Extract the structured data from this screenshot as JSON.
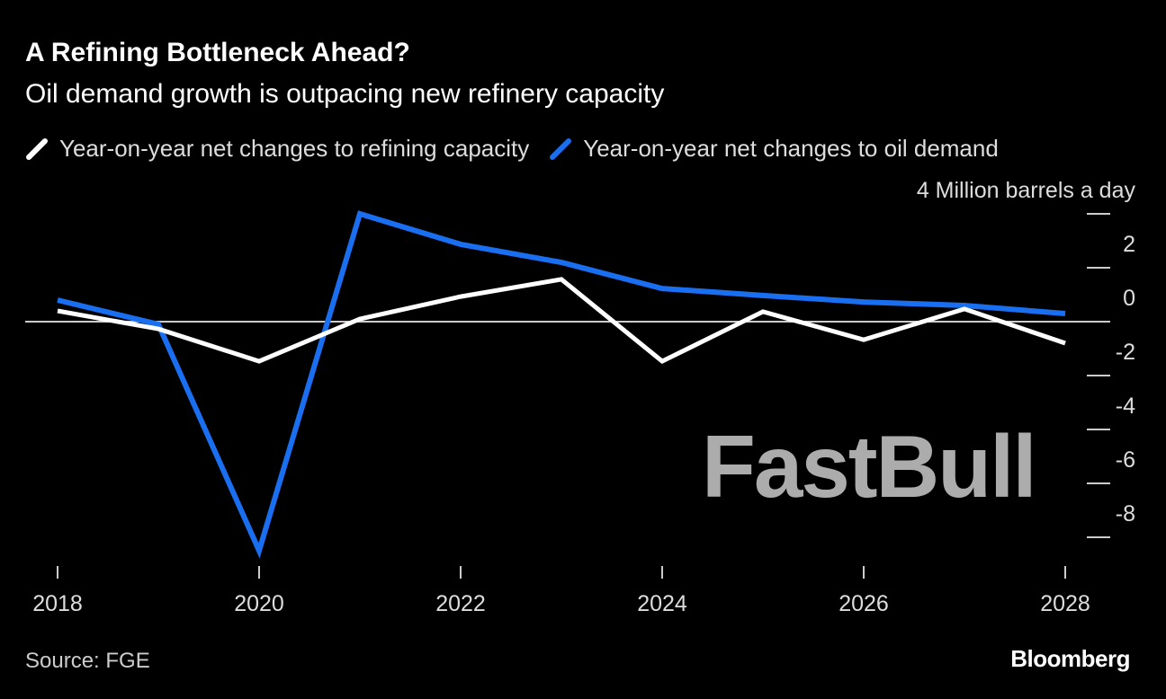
{
  "chart_data": {
    "type": "line",
    "title": "A Refining Bottleneck Ahead?",
    "subtitle": "Oil demand growth is outpacing new refinery capacity",
    "ylabel": "Million barrels a day",
    "source": "Source: FGE",
    "x": [
      2018,
      2019,
      2020,
      2021,
      2022,
      2023,
      2024,
      2025,
      2026,
      2027,
      2028
    ],
    "xticks": [
      "2018",
      "2020",
      "2022",
      "2024",
      "2026",
      "2028"
    ],
    "yticks": [
      "4",
      "2",
      "0",
      "-2",
      "-4",
      "-6",
      "-8"
    ],
    "ylim": [
      -9,
      4
    ],
    "legend_placement": "top",
    "grid": false,
    "series": [
      {
        "name": "Year-on-year net changes to refining capacity",
        "color": "#ffffff",
        "values": [
          0.4,
          -0.27,
          -1.47,
          0.1,
          0.93,
          1.57,
          -1.47,
          0.37,
          -0.67,
          0.47,
          -0.8
        ]
      },
      {
        "name": "Year-on-year net changes to oil demand",
        "color": "#1a6ff0",
        "values": [
          0.8,
          -0.1,
          -8.5,
          4.0,
          2.87,
          2.2,
          1.23,
          0.97,
          0.73,
          0.6,
          0.3
        ]
      }
    ]
  },
  "branding": {
    "logo": "Bloomberg",
    "watermark": "FastBull"
  }
}
